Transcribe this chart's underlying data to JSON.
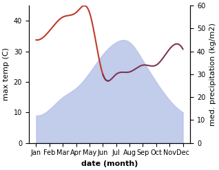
{
  "months": [
    "Jan",
    "Feb",
    "Mar",
    "Apr",
    "May",
    "Jun",
    "Jul",
    "Aug",
    "Sep",
    "Oct",
    "Nov",
    "Dec"
  ],
  "max_temp": [
    9,
    11,
    15,
    18,
    23,
    29,
    33,
    33,
    27,
    20,
    14,
    10
  ],
  "med_precip": [
    45,
    49,
    55,
    57,
    57,
    30,
    30,
    31,
    34,
    34,
    41,
    41
  ],
  "fill_color": "#b8c4e8",
  "fill_alpha": 0.85,
  "precip_color_early": "#c0392b",
  "precip_color_late": "#7d3557",
  "ylim_temp": [
    0,
    45
  ],
  "ylim_precip": [
    0,
    60
  ],
  "yticks_temp": [
    0,
    10,
    20,
    30,
    40
  ],
  "yticks_precip": [
    0,
    10,
    20,
    30,
    40,
    50,
    60
  ],
  "xlabel": "date (month)",
  "ylabel_left": "max temp (C)",
  "ylabel_right": "med. precipitation (kg/m2)",
  "figsize": [
    3.18,
    2.47
  ],
  "dpi": 100,
  "line_width": 1.5,
  "split_month": 5
}
